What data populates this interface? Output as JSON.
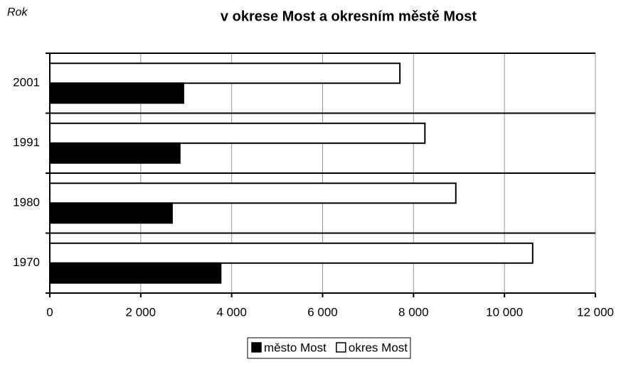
{
  "chart_data": {
    "type": "hbar",
    "title": "v okrese Most a okresním městě Most",
    "y_label": "Rok",
    "categories": [
      "2001",
      "1991",
      "1980",
      "1970"
    ],
    "series": [
      {
        "name": "okres Most",
        "color": "#ffffff",
        "values": [
          7700,
          8250,
          8930,
          10620
        ]
      },
      {
        "name": "město Most",
        "color": "#000000",
        "values": [
          2940,
          2860,
          2690,
          3760
        ]
      }
    ],
    "xlim": [
      0,
      12000
    ],
    "xticks": [
      0,
      {
        "value": 2000,
        "label": "2 000"
      },
      {
        "value": 4000,
        "label": "4 000"
      },
      {
        "value": 6000,
        "label": "6 000"
      },
      {
        "value": 8000,
        "label": "8 000"
      },
      {
        "value": 10000,
        "label": "10 000"
      },
      {
        "value": 12000,
        "label": "12 000"
      }
    ],
    "grid": true,
    "legend": "bottom"
  }
}
